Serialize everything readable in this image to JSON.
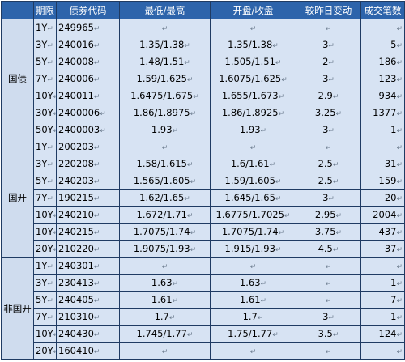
{
  "headers": [
    "期限",
    "债券代码",
    "最低/最高",
    "开盘/收盘",
    "较昨日变动",
    "成交笔数"
  ],
  "groups": [
    {
      "name": "国债",
      "rows": [
        {
          "term": "1Y",
          "code": "249965",
          "lowhigh": "",
          "openclose": "",
          "change": "",
          "trades": ""
        },
        {
          "term": "3Y",
          "code": "240016",
          "lowhigh": "1.35/1.38",
          "openclose": "1.35/1.38",
          "change": "3",
          "trades": "5"
        },
        {
          "term": "5Y",
          "code": "240008",
          "lowhigh": "1.48/1.51",
          "openclose": "1.505/1.51",
          "change": "2",
          "trades": "186"
        },
        {
          "term": "7Y",
          "code": "240006",
          "lowhigh": "1.59/1.625",
          "openclose": "1.6075/1.625",
          "change": "3",
          "trades": "123"
        },
        {
          "term": "10Y",
          "code": "240011",
          "lowhigh": "1.6475/1.675",
          "openclose": "1.655/1.673",
          "change": "2.9",
          "trades": "934"
        },
        {
          "term": "30Y",
          "code": "2400006",
          "lowhigh": "1.86/1.8975",
          "openclose": "1.86/1.8925",
          "change": "3.25",
          "trades": "1377"
        },
        {
          "term": "50Y",
          "code": "2400003",
          "lowhigh": "1.93",
          "openclose": "1.93",
          "change": "3",
          "trades": "1"
        }
      ]
    },
    {
      "name": "国开",
      "rows": [
        {
          "term": "1Y",
          "code": "200203",
          "lowhigh": "",
          "openclose": "",
          "change": "",
          "trades": ""
        },
        {
          "term": "3Y",
          "code": "220208",
          "lowhigh": "1.58/1.615",
          "openclose": "1.6/1.61",
          "change": "2.5",
          "trades": "31"
        },
        {
          "term": "5Y",
          "code": "240203",
          "lowhigh": "1.565/1.605",
          "openclose": "1.59/1.605",
          "change": "2.5",
          "trades": "159"
        },
        {
          "term": "7Y",
          "code": "190215",
          "lowhigh": "1.62/1.65",
          "openclose": "1.645/1.65",
          "change": "3",
          "trades": "20"
        },
        {
          "term": "10Y",
          "code": "240210",
          "lowhigh": "1.672/1.71",
          "openclose": "1.6775/1.7025",
          "change": "2.95",
          "trades": "2004"
        },
        {
          "term": "10Y",
          "code": "240215",
          "lowhigh": "1.7075/1.74",
          "openclose": "1.7075/1.74",
          "change": "3.75",
          "trades": "437"
        },
        {
          "term": "20Y",
          "code": "210220",
          "lowhigh": "1.9075/1.93",
          "openclose": "1.915/1.93",
          "change": "4.5",
          "trades": "37"
        }
      ]
    },
    {
      "name": "非国开",
      "rows": [
        {
          "term": "1Y",
          "code": "240301",
          "lowhigh": "",
          "openclose": "",
          "change": "",
          "trades": ""
        },
        {
          "term": "3Y",
          "code": "230413",
          "lowhigh": "1.63",
          "openclose": "1.63",
          "change": "",
          "trades": "1"
        },
        {
          "term": "5Y",
          "code": "240405",
          "lowhigh": "1.61",
          "openclose": "1.61",
          "change": "",
          "trades": "7"
        },
        {
          "term": "7Y",
          "code": "210310",
          "lowhigh": "1.7",
          "openclose": "1.7",
          "change": "3",
          "trades": "1"
        },
        {
          "term": "10Y",
          "code": "240430",
          "lowhigh": "1.745/1.77",
          "openclose": "1.75/1.77",
          "change": "3.5",
          "trades": "124"
        },
        {
          "term": "20Y",
          "code": "160410",
          "lowhigh": "",
          "openclose": "",
          "change": "",
          "trades": ""
        }
      ]
    }
  ]
}
